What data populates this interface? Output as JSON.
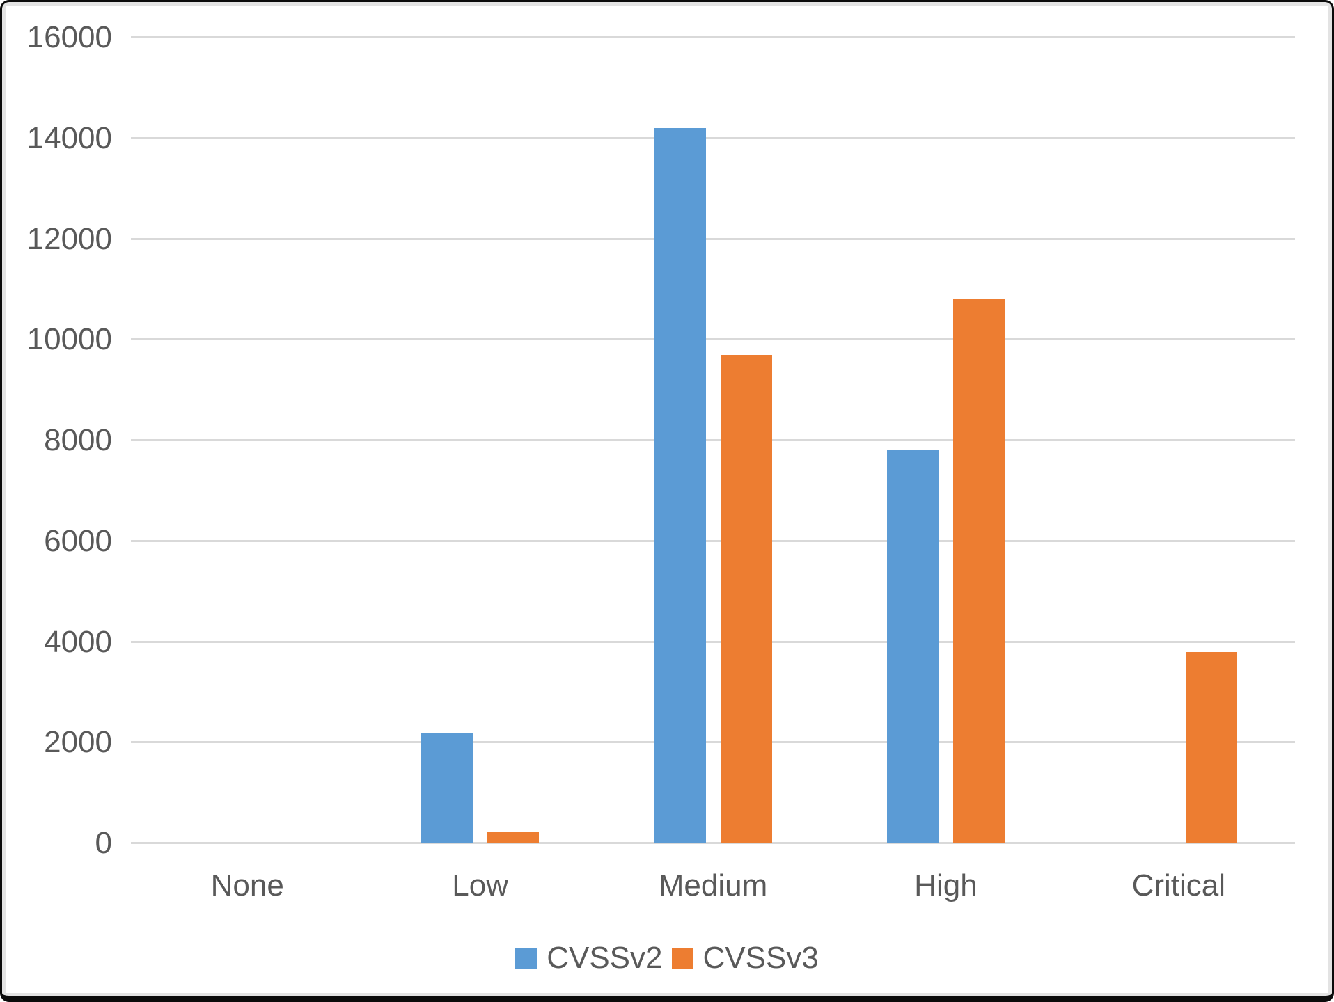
{
  "colors": {
    "series_cvssv2": "#5B9BD5",
    "series_cvssv3": "#ED7D31",
    "gridline": "#D9D9D9",
    "axis_text": "#595959",
    "plot_background": "#FFFFFF",
    "frame_border": "#0B0B0B"
  },
  "legend": {
    "items": [
      {
        "label": "CVSSv2",
        "color": "#5B9BD5"
      },
      {
        "label": "CVSSv3",
        "color": "#ED7D31"
      }
    ]
  },
  "chart_data": {
    "type": "bar",
    "title": "",
    "xlabel": "",
    "ylabel": "",
    "categories": [
      "None",
      "Low",
      "Medium",
      "High",
      "Critical"
    ],
    "series": [
      {
        "name": "CVSSv2",
        "color": "#5B9BD5",
        "values": [
          0,
          2200,
          14200,
          7800,
          0
        ]
      },
      {
        "name": "CVSSv3",
        "color": "#ED7D31",
        "values": [
          0,
          220,
          9700,
          10800,
          3800
        ]
      }
    ],
    "ylim": [
      0,
      16000
    ],
    "ytick_interval": 2000,
    "yticks": [
      0,
      2000,
      4000,
      6000,
      8000,
      10000,
      12000,
      14000,
      16000
    ],
    "grid": true,
    "legend_position": "bottom"
  }
}
